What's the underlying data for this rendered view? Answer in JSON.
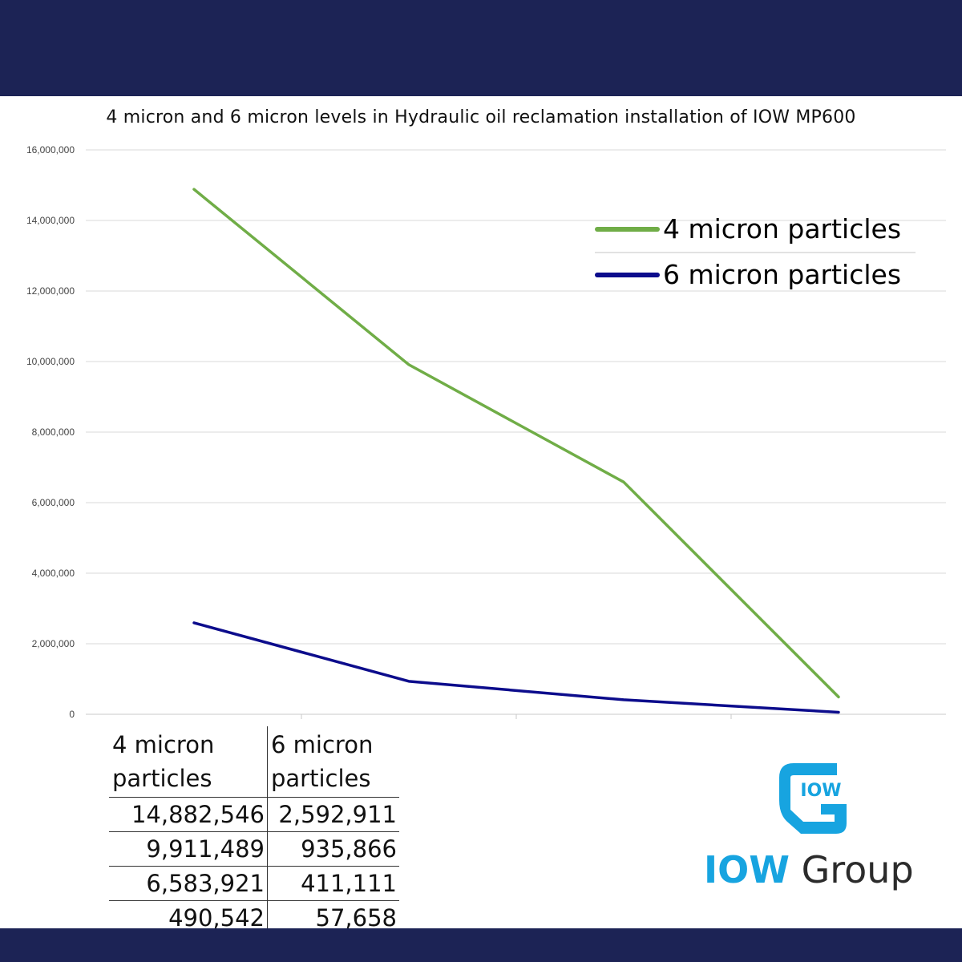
{
  "chart_data": {
    "type": "line",
    "title": "4 micron and 6 micron levels in Hydraulic oil reclamation installation of IOW MP600",
    "xlabel": "",
    "ylabel": "",
    "x": [
      1,
      2,
      3,
      4
    ],
    "ylim": [
      0,
      16000000
    ],
    "yticks": [
      0,
      2000000,
      4000000,
      6000000,
      8000000,
      10000000,
      12000000,
      14000000,
      16000000
    ],
    "ytick_labels": [
      "0",
      "2,000,000",
      "4,000,000",
      "6,000,000",
      "8,000,000",
      "10,000,000",
      "12,000,000",
      "14,000,000",
      "16,000,000"
    ],
    "grid": true,
    "legend": "top-right",
    "series": [
      {
        "name": "4 micron particles",
        "color": "#70ad47",
        "values": [
          14882546,
          9911489,
          6583921,
          490542
        ]
      },
      {
        "name": "6 micron particles",
        "color": "#0c0c8c",
        "values": [
          2592911,
          935866,
          411111,
          57658
        ]
      }
    ]
  },
  "table": {
    "headers": [
      [
        "4 micron",
        "particles"
      ],
      [
        "6 micron",
        "particles"
      ]
    ],
    "rows": [
      [
        "14,882,546",
        "2,592,911"
      ],
      [
        "9,911,489",
        "935,866"
      ],
      [
        "6,583,921",
        "411,111"
      ],
      [
        "490,542",
        "57,658"
      ]
    ]
  },
  "logo": {
    "icon_text": "IOW",
    "brand": "IOW",
    "group": "Group",
    "brand_color": "#17a4e0"
  },
  "colors": {
    "band": "#1c2355",
    "grid": "#d9d9d9"
  }
}
